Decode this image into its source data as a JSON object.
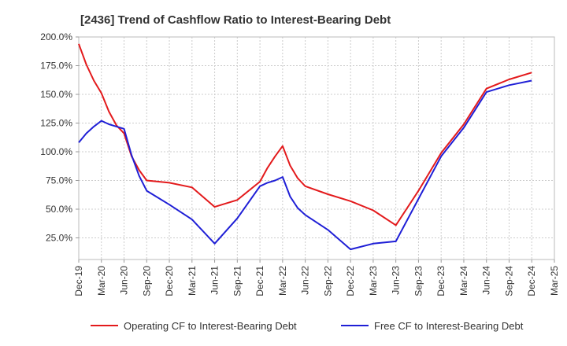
{
  "chart_data": {
    "type": "line",
    "title": "[2436]  Trend of Cashflow Ratio to Interest-Bearing Debt",
    "xlabel": "",
    "ylabel": "",
    "x_ticks": [
      "Dec-19",
      "Mar-20",
      "Jun-20",
      "Sep-20",
      "Dec-20",
      "Mar-21",
      "Jun-21",
      "Sep-21",
      "Dec-21",
      "Mar-22",
      "Jun-22",
      "Sep-22",
      "Dec-22",
      "Mar-23",
      "Jun-23",
      "Sep-23",
      "Dec-23",
      "Mar-24",
      "Jun-24",
      "Sep-24",
      "Dec-24",
      "Mar-25"
    ],
    "y_ticks": [
      "200.0%",
      "175.0%",
      "150.0%",
      "125.0%",
      "100.0%",
      "75.0%",
      "50.0%",
      "25.0%"
    ],
    "ylim": [
      10,
      200
    ],
    "grid": true,
    "legend_position": "bottom",
    "series": [
      {
        "name": "Operating CF to Interest-Bearing Debt",
        "color": "#e31a1c",
        "points": [
          [
            "Dec-19",
            194
          ],
          [
            "Jan-20",
            176
          ],
          [
            "Feb-20",
            162
          ],
          [
            "Mar-20",
            151
          ],
          [
            "Apr-20",
            135
          ],
          [
            "May-20",
            123
          ],
          [
            "Jun-20",
            116
          ],
          [
            "Jul-20",
            96
          ],
          [
            "Aug-20",
            84
          ],
          [
            "Sep-20",
            75
          ],
          [
            "Dec-20",
            73
          ],
          [
            "Mar-21",
            69
          ],
          [
            "Jun-21",
            52
          ],
          [
            "Sep-21",
            58
          ],
          [
            "Dec-21",
            74
          ],
          [
            "Jan-22",
            86
          ],
          [
            "Feb-22",
            96
          ],
          [
            "Mar-22",
            105
          ],
          [
            "Apr-22",
            88
          ],
          [
            "May-22",
            77
          ],
          [
            "Jun-22",
            70
          ],
          [
            "Sep-22",
            63
          ],
          [
            "Dec-22",
            57
          ],
          [
            "Mar-23",
            49
          ],
          [
            "Jun-23",
            36
          ],
          [
            "Sep-23",
            66
          ],
          [
            "Dec-23",
            99
          ],
          [
            "Mar-24",
            124
          ],
          [
            "Jun-24",
            155
          ],
          [
            "Sep-24",
            163
          ],
          [
            "Dec-24",
            169
          ]
        ]
      },
      {
        "name": "Free CF to Interest-Bearing Debt",
        "color": "#1f1fd6",
        "points": [
          [
            "Dec-19",
            108
          ],
          [
            "Jan-20",
            116
          ],
          [
            "Feb-20",
            122
          ],
          [
            "Mar-20",
            127
          ],
          [
            "Apr-20",
            124
          ],
          [
            "May-20",
            122
          ],
          [
            "Jun-20",
            120
          ],
          [
            "Jul-20",
            97
          ],
          [
            "Aug-20",
            79
          ],
          [
            "Sep-20",
            66
          ],
          [
            "Dec-20",
            54
          ],
          [
            "Mar-21",
            41
          ],
          [
            "Jun-21",
            20
          ],
          [
            "Sep-21",
            42
          ],
          [
            "Dec-21",
            70
          ],
          [
            "Jan-22",
            73
          ],
          [
            "Feb-22",
            75
          ],
          [
            "Mar-22",
            78
          ],
          [
            "Apr-22",
            61
          ],
          [
            "May-22",
            51
          ],
          [
            "Jun-22",
            45
          ],
          [
            "Sep-22",
            32
          ],
          [
            "Dec-22",
            15
          ],
          [
            "Mar-23",
            20
          ],
          [
            "Jun-23",
            22
          ],
          [
            "Sep-23",
            59
          ],
          [
            "Dec-23",
            96
          ],
          [
            "Mar-24",
            121
          ],
          [
            "Jun-24",
            152
          ],
          [
            "Sep-24",
            158
          ],
          [
            "Dec-24",
            162
          ]
        ]
      }
    ]
  }
}
